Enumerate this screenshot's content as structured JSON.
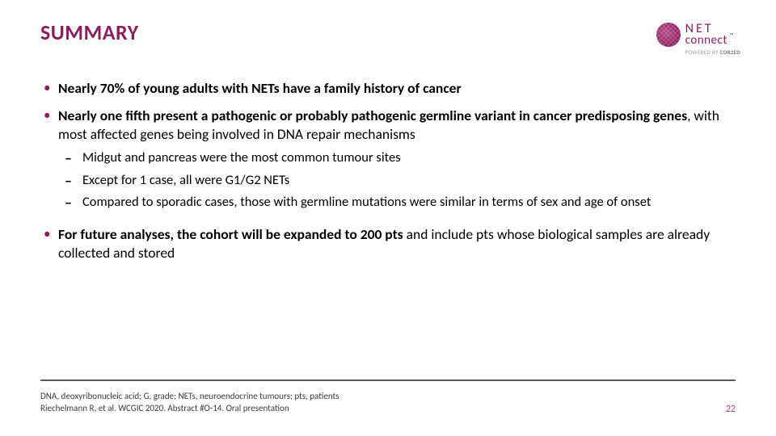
{
  "title": "SUMMARY",
  "logo": {
    "line1": "NET",
    "line2": "connect",
    "tm": "™",
    "powered_prefix": "POWERED BY ",
    "powered_brand": "COR2ED"
  },
  "bullets": {
    "b1": {
      "text_bold": "Nearly 70% of young adults with NETs have a family history of cancer"
    },
    "b2": {
      "text_bold": "Nearly one fifth present a pathogenic or probably pathogenic germline variant in cancer predisposing genes",
      "text_rest": ", with most affected genes being involved in DNA repair mechanisms",
      "sub": [
        "Midgut and pancreas were the most common tumour sites",
        "Except for 1 case, all were G1/G2 NETs",
        "Compared to sporadic cases, those with germline mutations were similar in terms of sex and age of onset"
      ]
    },
    "b3": {
      "text_bold": "For future analyses, the cohort will be expanded to 200 pts",
      "text_rest": " and include pts whose biological samples are already collected and stored"
    }
  },
  "footnotes": {
    "line1": "DNA, deoxyribonucleic acid; G, grade; NETs, neuroendocrine tumours; pts, patients",
    "line2": "Riechelmann R, et al. WCGIC 2020. Abstract #O-14. Oral presentation"
  },
  "page_number": "22",
  "colors": {
    "accent": "#8b1f5c",
    "text": "#000000",
    "divider": "#5a5a5a",
    "pagenum": "#a24f81",
    "background": "#ffffff"
  }
}
